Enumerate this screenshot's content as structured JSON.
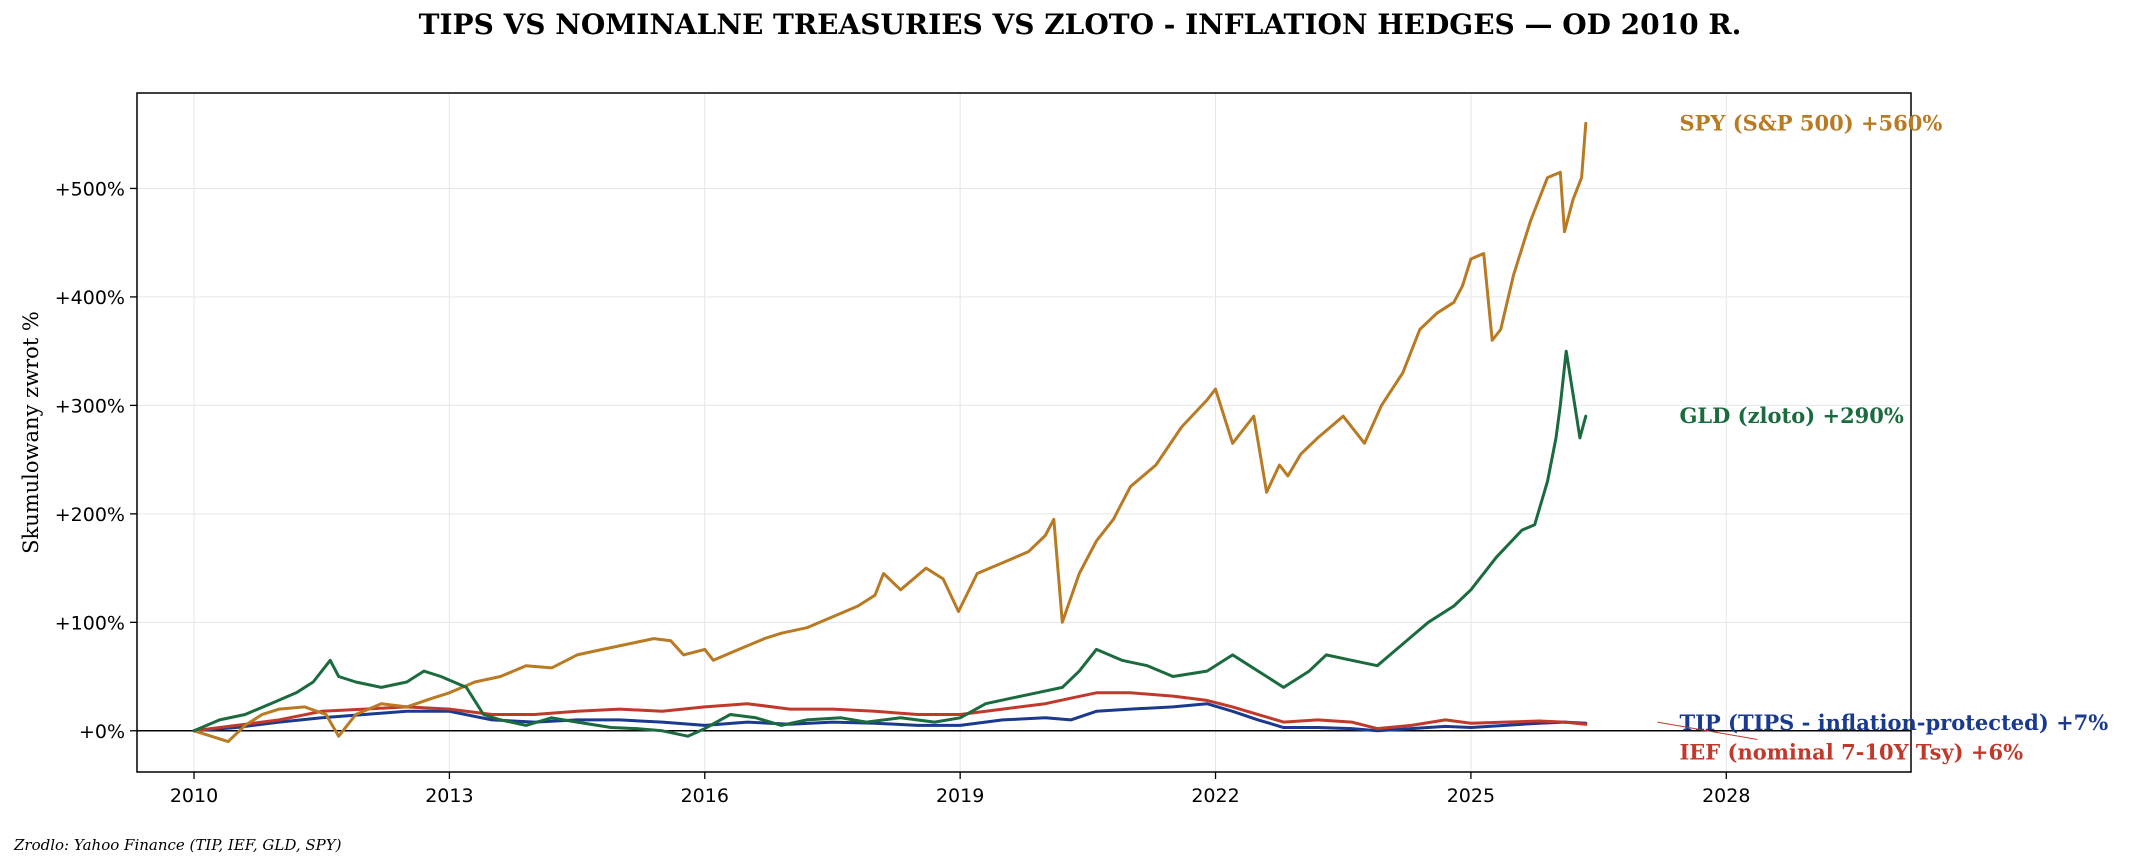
{
  "chart_data": {
    "type": "line",
    "title": "TIPS VS NOMINALNE TREASURIES VS ZLOTO - INFLATION HEDGES — OD 2010 R.",
    "xlabel": "",
    "ylabel": "Skumulowany zwrot %",
    "source": "Zrodlo: Yahoo Finance (TIP, IEF, GLD, SPY)",
    "xlim": [
      2009.33,
      2030.17
    ],
    "ylim": [
      -38,
      588
    ],
    "x_ticks": [
      2010,
      2013,
      2016,
      2019,
      2022,
      2025,
      2028
    ],
    "x_tick_labels": [
      "2010",
      "2013",
      "2016",
      "2019",
      "2022",
      "2025",
      "2028"
    ],
    "y_ticks": [
      0,
      100,
      200,
      300,
      400,
      500
    ],
    "y_tick_labels": [
      "+0%",
      "+100%",
      "+200%",
      "+300%",
      "+400%",
      "+500%"
    ],
    "zero_line": true,
    "grid": true,
    "legend": "none (end labels at right)",
    "series": [
      {
        "name": "SPY (S&P 500)",
        "color": "#b87a23",
        "end_label": "SPY (S&P 500)  +560%",
        "label_value": 560,
        "label_year": 2027.45,
        "x": [
          2010.0,
          2010.2,
          2010.4,
          2010.6,
          2010.8,
          2011.0,
          2011.3,
          2011.55,
          2011.7,
          2011.9,
          2012.2,
          2012.5,
          2012.8,
          2013.0,
          2013.3,
          2013.6,
          2013.9,
          2014.2,
          2014.5,
          2014.8,
          2015.1,
          2015.4,
          2015.6,
          2015.75,
          2016.0,
          2016.1,
          2016.4,
          2016.7,
          2016.9,
          2017.2,
          2017.5,
          2017.8,
          2018.0,
          2018.1,
          2018.3,
          2018.6,
          2018.8,
          2018.98,
          2019.2,
          2019.5,
          2019.8,
          2020.0,
          2020.1,
          2020.2,
          2020.4,
          2020.6,
          2020.8,
          2021.0,
          2021.3,
          2021.6,
          2021.9,
          2022.0,
          2022.2,
          2022.45,
          2022.6,
          2022.75,
          2022.85,
          2023.0,
          2023.2,
          2023.5,
          2023.75,
          2023.95,
          2024.2,
          2024.4,
          2024.6,
          2024.8,
          2024.9,
          2025.0,
          2025.15,
          2025.25,
          2025.35,
          2025.5,
          2025.7,
          2025.9,
          2026.05,
          2026.1,
          2026.2,
          2026.3,
          2026.35
        ],
        "y": [
          0,
          -5,
          -10,
          5,
          15,
          20,
          22,
          15,
          -5,
          15,
          25,
          22,
          30,
          35,
          45,
          50,
          60,
          58,
          70,
          75,
          80,
          85,
          83,
          70,
          75,
          65,
          75,
          85,
          90,
          95,
          105,
          115,
          125,
          145,
          130,
          150,
          140,
          110,
          145,
          155,
          165,
          180,
          195,
          100,
          145,
          175,
          195,
          225,
          245,
          280,
          305,
          315,
          265,
          290,
          220,
          245,
          235,
          255,
          270,
          290,
          265,
          300,
          330,
          370,
          385,
          395,
          410,
          435,
          440,
          360,
          370,
          420,
          470,
          510,
          515,
          460,
          490,
          510,
          560
        ]
      },
      {
        "name": "GLD (zloto)",
        "color": "#1b6b3e",
        "end_label": "GLD (zloto)  +290%",
        "label_value": 290,
        "label_year": 2027.45,
        "x": [
          2010.0,
          2010.3,
          2010.6,
          2010.9,
          2011.2,
          2011.4,
          2011.6,
          2011.7,
          2011.9,
          2012.2,
          2012.5,
          2012.7,
          2012.9,
          2013.2,
          2013.4,
          2013.6,
          2013.9,
          2014.2,
          2014.5,
          2014.9,
          2015.2,
          2015.5,
          2015.8,
          2016.0,
          2016.3,
          2016.6,
          2016.9,
          2017.2,
          2017.6,
          2017.9,
          2018.3,
          2018.7,
          2019.0,
          2019.3,
          2019.6,
          2019.9,
          2020.2,
          2020.4,
          2020.6,
          2020.9,
          2021.2,
          2021.5,
          2021.9,
          2022.2,
          2022.4,
          2022.6,
          2022.8,
          2023.1,
          2023.3,
          2023.6,
          2023.9,
          2024.2,
          2024.5,
          2024.8,
          2025.0,
          2025.3,
          2025.6,
          2025.75,
          2025.9,
          2026.0,
          2026.05,
          2026.12,
          2026.2,
          2026.28,
          2026.35
        ],
        "y": [
          0,
          10,
          15,
          25,
          35,
          45,
          65,
          50,
          45,
          40,
          45,
          55,
          50,
          40,
          15,
          10,
          5,
          12,
          8,
          3,
          2,
          0,
          -5,
          2,
          15,
          12,
          5,
          10,
          12,
          8,
          12,
          8,
          12,
          25,
          30,
          35,
          40,
          55,
          75,
          65,
          60,
          50,
          55,
          70,
          60,
          50,
          40,
          55,
          70,
          65,
          60,
          80,
          100,
          115,
          130,
          160,
          185,
          190,
          230,
          270,
          300,
          350,
          310,
          270,
          290
        ]
      },
      {
        "name": "TIP (TIPS - inflation-protected)",
        "color": "#1a3a8f",
        "end_label": "TIP (TIPS - inflation-protected)  +7%",
        "label_value": 7,
        "label_year": 2027.45,
        "x": [
          2010.0,
          2010.5,
          2011.0,
          2011.5,
          2012.0,
          2012.5,
          2013.0,
          2013.5,
          2014.0,
          2014.5,
          2015.0,
          2015.5,
          2016.0,
          2016.5,
          2017.0,
          2017.5,
          2018.0,
          2018.5,
          2019.0,
          2019.5,
          2020.0,
          2020.3,
          2020.6,
          2021.0,
          2021.5,
          2021.9,
          2022.2,
          2022.5,
          2022.8,
          2023.2,
          2023.6,
          2023.9,
          2024.3,
          2024.7,
          2025.0,
          2025.4,
          2025.8,
          2026.1,
          2026.35
        ],
        "y": [
          0,
          3,
          8,
          12,
          15,
          18,
          18,
          10,
          8,
          10,
          10,
          8,
          5,
          8,
          6,
          8,
          7,
          5,
          5,
          10,
          12,
          10,
          18,
          20,
          22,
          25,
          18,
          10,
          3,
          3,
          2,
          0,
          2,
          4,
          3,
          5,
          7,
          8,
          7
        ]
      },
      {
        "name": "IEF (nominal 7-10Y Tsy)",
        "color": "#c0392b",
        "end_label": "IEF (nominal 7-10Y Tsy)  +6%",
        "label_value": -20,
        "label_year": 2027.45,
        "x": [
          2010.0,
          2010.5,
          2011.0,
          2011.5,
          2012.0,
          2012.5,
          2013.0,
          2013.5,
          2014.0,
          2014.5,
          2015.0,
          2015.5,
          2016.0,
          2016.5,
          2017.0,
          2017.5,
          2018.0,
          2018.5,
          2019.0,
          2019.5,
          2020.0,
          2020.3,
          2020.6,
          2021.0,
          2021.5,
          2021.9,
          2022.2,
          2022.5,
          2022.8,
          2023.2,
          2023.6,
          2023.9,
          2024.3,
          2024.7,
          2025.0,
          2025.4,
          2025.8,
          2026.1,
          2026.35
        ],
        "y": [
          0,
          5,
          10,
          18,
          20,
          22,
          20,
          15,
          15,
          18,
          20,
          18,
          22,
          25,
          20,
          20,
          18,
          15,
          15,
          20,
          25,
          30,
          35,
          35,
          32,
          28,
          22,
          15,
          8,
          10,
          8,
          2,
          5,
          10,
          7,
          8,
          9,
          8,
          6
        ]
      }
    ]
  }
}
